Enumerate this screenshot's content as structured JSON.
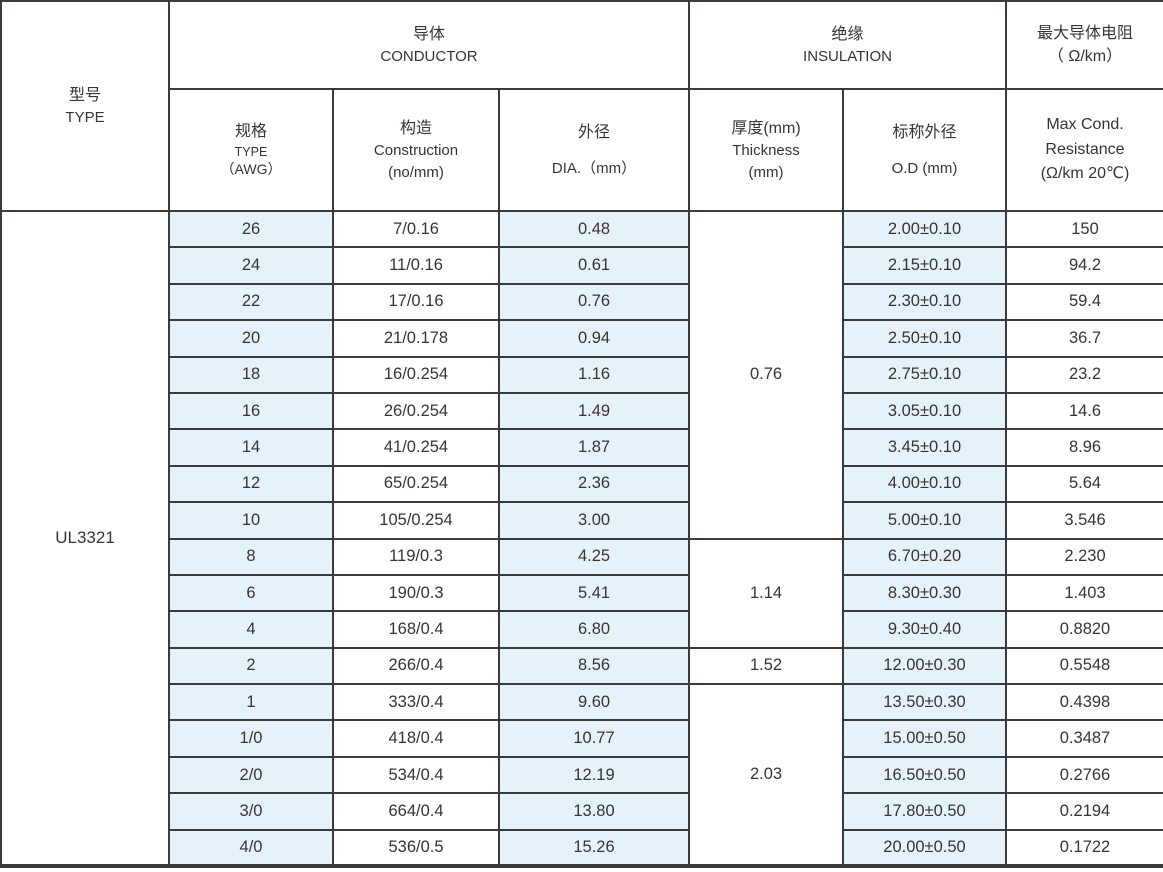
{
  "table": {
    "title_semantic": "UL3321 wire specification table",
    "type_value": "UL3321",
    "header": {
      "type_col": {
        "zh": "型号",
        "en": "TYPE"
      },
      "conductor_group": {
        "zh": "导体",
        "en": "CONDUCTOR"
      },
      "insulation_group": {
        "zh": "绝缘",
        "en": "INSULATION"
      },
      "resistance_group": {
        "zh": "最大导体电阻",
        "en": "（ Ω/km）"
      },
      "awg_col": {
        "l1": "规格",
        "l2": "TYPE",
        "l3": "（AWG）"
      },
      "construction_col": {
        "l1": "构造",
        "l2": "Construction",
        "l3": "(no/mm)"
      },
      "dia_col": {
        "l1": "外径",
        "l2": "DIA.（mm）"
      },
      "thickness_col": {
        "l1": "厚度(mm)",
        "l2": "Thickness",
        "l3": "(mm)"
      },
      "od_col": {
        "l1": "标称外径",
        "l2": "O.D (mm)"
      },
      "resistance_col": {
        "l1": "Max Cond.",
        "l2": "Resistance",
        "l3": "(Ω/km 20℃)"
      }
    },
    "rows": [
      {
        "awg": "26",
        "construction": "7/0.16",
        "dia": "0.48",
        "od": "2.00±0.10",
        "res": "150"
      },
      {
        "awg": "24",
        "construction": "11/0.16",
        "dia": "0.61",
        "od": "2.15±0.10",
        "res": "94.2"
      },
      {
        "awg": "22",
        "construction": "17/0.16",
        "dia": "0.76",
        "od": "2.30±0.10",
        "res": "59.4"
      },
      {
        "awg": "20",
        "construction": "21/0.178",
        "dia": "0.94",
        "od": "2.50±0.10",
        "res": "36.7"
      },
      {
        "awg": "18",
        "construction": "16/0.254",
        "dia": "1.16",
        "od": "2.75±0.10",
        "res": "23.2"
      },
      {
        "awg": "16",
        "construction": "26/0.254",
        "dia": "1.49",
        "od": "3.05±0.10",
        "res": "14.6"
      },
      {
        "awg": "14",
        "construction": "41/0.254",
        "dia": "1.87",
        "od": "3.45±0.10",
        "res": "8.96"
      },
      {
        "awg": "12",
        "construction": "65/0.254",
        "dia": "2.36",
        "od": "4.00±0.10",
        "res": "5.64"
      },
      {
        "awg": "10",
        "construction": "105/0.254",
        "dia": "3.00",
        "od": "5.00±0.10",
        "res": "3.546"
      },
      {
        "awg": "8",
        "construction": "119/0.3",
        "dia": "4.25",
        "od": "6.70±0.20",
        "res": "2.230"
      },
      {
        "awg": "6",
        "construction": "190/0.3",
        "dia": "5.41",
        "od": "8.30±0.30",
        "res": "1.403"
      },
      {
        "awg": "4",
        "construction": "168/0.4",
        "dia": "6.80",
        "od": "9.30±0.40",
        "res": "0.8820"
      },
      {
        "awg": "2",
        "construction": "266/0.4",
        "dia": "8.56",
        "od": "12.00±0.30",
        "res": "0.5548"
      },
      {
        "awg": "1",
        "construction": "333/0.4",
        "dia": "9.60",
        "od": "13.50±0.30",
        "res": "0.4398"
      },
      {
        "awg": "1/0",
        "construction": "418/0.4",
        "dia": "10.77",
        "od": "15.00±0.50",
        "res": "0.3487"
      },
      {
        "awg": "2/0",
        "construction": "534/0.4",
        "dia": "12.19",
        "od": "16.50±0.50",
        "res": "0.2766"
      },
      {
        "awg": "3/0",
        "construction": "664/0.4",
        "dia": "13.80",
        "od": "17.80±0.50",
        "res": "0.2194"
      },
      {
        "awg": "4/0",
        "construction": "536/0.5",
        "dia": "15.26",
        "od": "20.00±0.50",
        "res": "0.1722"
      }
    ],
    "thickness_groups": [
      {
        "value": "0.76",
        "span": 9
      },
      {
        "value": "1.14",
        "span": 3
      },
      {
        "value": "1.52",
        "span": 1
      },
      {
        "value": "2.03",
        "span": 5
      }
    ],
    "colors": {
      "row_highlight": "#e6f2fa",
      "border": "#3e3a39",
      "text": "#383433"
    }
  }
}
